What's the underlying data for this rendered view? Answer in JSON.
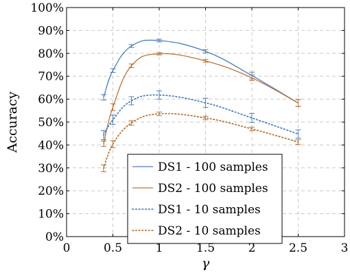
{
  "chart_data": {
    "type": "line",
    "xlabel": "γ",
    "ylabel": "Accuracy",
    "xlim": [
      0,
      3
    ],
    "ylim": [
      0,
      100
    ],
    "x_ticks": [
      0,
      0.5,
      1,
      1.5,
      2,
      2.5,
      3
    ],
    "x_tick_labels": [
      "0",
      "0.5",
      "1",
      "1.5",
      "2",
      "2.5",
      "3"
    ],
    "y_ticks": [
      0,
      10,
      20,
      30,
      40,
      50,
      60,
      70,
      80,
      90,
      100
    ],
    "y_tick_labels": [
      "0%",
      "10%",
      "20%",
      "30%",
      "40%",
      "50%",
      "60%",
      "70%",
      "80%",
      "90%",
      "100%"
    ],
    "grid": true,
    "legend_position": "bottom-center",
    "x": [
      0.4,
      0.5,
      0.7,
      1,
      1.5,
      2,
      2.5
    ],
    "series": [
      {
        "name": "DS1 - 100 samples",
        "color": "#4a7ebf",
        "line_style": "solid",
        "values": [
          60.8,
          72.5,
          83.2,
          85.6,
          80.9,
          70.3,
          58.3
        ],
        "error": [
          1.2,
          0.8,
          0.6,
          0.6,
          0.7,
          1.5,
          1.5
        ]
      },
      {
        "name": "DS2 - 100 samples",
        "color": "#b87333",
        "line_style": "solid",
        "values": [
          40.5,
          56.5,
          74.6,
          79.8,
          76.7,
          69.3,
          58.3
        ],
        "error": [
          1.2,
          1.5,
          0.8,
          0.5,
          0.6,
          1.2,
          1.5
        ]
      },
      {
        "name": "DS1 - 10 samples",
        "color": "#4a7ebf",
        "line_style": "dotted",
        "values": [
          44.3,
          51.0,
          59.3,
          61.8,
          58.4,
          51.8,
          44.8
        ],
        "error": [
          2.0,
          2.0,
          1.8,
          1.8,
          2.0,
          2.0,
          1.8
        ]
      },
      {
        "name": "DS2 - 10 samples",
        "color": "#b87333",
        "line_style": "dotted",
        "values": [
          29.8,
          40.3,
          49.6,
          53.6,
          51.8,
          47.0,
          41.3
        ],
        "error": [
          1.5,
          1.5,
          1.0,
          0.8,
          0.8,
          0.8,
          1.0
        ]
      }
    ]
  }
}
